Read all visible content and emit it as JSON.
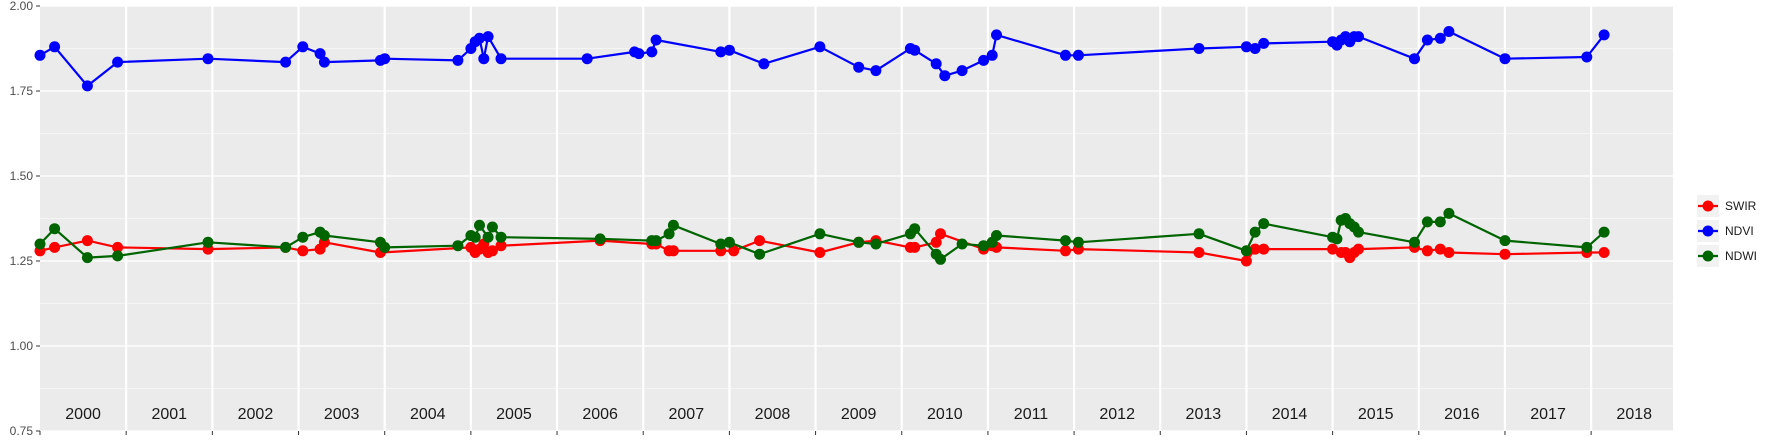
{
  "chart_data": {
    "type": "line",
    "title": "",
    "xlabel": "",
    "ylabel": "",
    "ylim": [
      0.75,
      2.0
    ],
    "xlim": [
      1999.5,
      2018.45
    ],
    "y_ticks": [
      "0.75",
      "1.00",
      "1.25",
      "1.50",
      "1.75",
      "2.00"
    ],
    "years": [
      "2000",
      "2001",
      "2002",
      "2003",
      "2004",
      "2005",
      "2006",
      "2007",
      "2008",
      "2009",
      "2010",
      "2011",
      "2012",
      "2013",
      "2014",
      "2015",
      "2016",
      "2017",
      "2018"
    ],
    "grid": true,
    "legend_position": "right",
    "series": [
      {
        "name": "SWIR",
        "color": "#ff0000",
        "points": [
          [
            1999.5,
            1.28
          ],
          [
            1999.67,
            1.29
          ],
          [
            2000.05,
            1.31
          ],
          [
            2000.4,
            1.29
          ],
          [
            2001.45,
            1.285
          ],
          [
            2002.35,
            1.29
          ],
          [
            2002.55,
            1.28
          ],
          [
            2002.75,
            1.285
          ],
          [
            2002.8,
            1.305
          ],
          [
            2003.45,
            1.275
          ],
          [
            2004.5,
            1.29
          ],
          [
            2004.55,
            1.275
          ],
          [
            2004.6,
            1.285
          ],
          [
            2004.65,
            1.3
          ],
          [
            2004.7,
            1.275
          ],
          [
            2004.75,
            1.28
          ],
          [
            2004.85,
            1.295
          ],
          [
            2006.0,
            1.31
          ],
          [
            2006.6,
            1.3
          ],
          [
            2006.65,
            1.3
          ],
          [
            2006.8,
            1.28
          ],
          [
            2006.85,
            1.28
          ],
          [
            2007.4,
            1.28
          ],
          [
            2007.55,
            1.28
          ],
          [
            2007.85,
            1.31
          ],
          [
            2008.55,
            1.275
          ],
          [
            2009.0,
            1.305
          ],
          [
            2009.2,
            1.31
          ],
          [
            2009.6,
            1.29
          ],
          [
            2009.65,
            1.29
          ],
          [
            2009.9,
            1.305
          ],
          [
            2009.95,
            1.33
          ],
          [
            2010.45,
            1.285
          ],
          [
            2010.55,
            1.295
          ],
          [
            2010.6,
            1.29
          ],
          [
            2011.4,
            1.28
          ],
          [
            2011.55,
            1.285
          ],
          [
            2012.95,
            1.275
          ],
          [
            2013.5,
            1.25
          ],
          [
            2013.6,
            1.285
          ],
          [
            2013.7,
            1.285
          ],
          [
            2014.5,
            1.285
          ],
          [
            2014.6,
            1.275
          ],
          [
            2014.65,
            1.275
          ],
          [
            2014.7,
            1.26
          ],
          [
            2014.75,
            1.275
          ],
          [
            2014.8,
            1.285
          ],
          [
            2015.45,
            1.29
          ],
          [
            2015.6,
            1.28
          ],
          [
            2015.75,
            1.285
          ],
          [
            2015.85,
            1.275
          ],
          [
            2016.5,
            1.27
          ],
          [
            2017.45,
            1.275
          ],
          [
            2017.65,
            1.275
          ]
        ]
      },
      {
        "name": "NDVI",
        "color": "#0000ff",
        "points": [
          [
            1999.5,
            1.855
          ],
          [
            1999.67,
            1.88
          ],
          [
            2000.05,
            1.765
          ],
          [
            2000.4,
            1.835
          ],
          [
            2001.45,
            1.845
          ],
          [
            2002.35,
            1.835
          ],
          [
            2002.55,
            1.88
          ],
          [
            2002.75,
            1.86
          ],
          [
            2002.8,
            1.835
          ],
          [
            2003.45,
            1.84
          ],
          [
            2003.5,
            1.845
          ],
          [
            2004.35,
            1.84
          ],
          [
            2004.5,
            1.875
          ],
          [
            2004.55,
            1.895
          ],
          [
            2004.6,
            1.905
          ],
          [
            2004.65,
            1.845
          ],
          [
            2004.7,
            1.91
          ],
          [
            2004.85,
            1.845
          ],
          [
            2005.85,
            1.845
          ],
          [
            2006.4,
            1.865
          ],
          [
            2006.45,
            1.86
          ],
          [
            2006.6,
            1.865
          ],
          [
            2006.65,
            1.9
          ],
          [
            2007.4,
            1.865
          ],
          [
            2007.5,
            1.87
          ],
          [
            2007.9,
            1.83
          ],
          [
            2008.55,
            1.88
          ],
          [
            2009.0,
            1.82
          ],
          [
            2009.2,
            1.81
          ],
          [
            2009.6,
            1.875
          ],
          [
            2009.65,
            1.87
          ],
          [
            2009.9,
            1.83
          ],
          [
            2010.0,
            1.795
          ],
          [
            2010.2,
            1.81
          ],
          [
            2010.45,
            1.84
          ],
          [
            2010.55,
            1.855
          ],
          [
            2010.6,
            1.915
          ],
          [
            2011.4,
            1.855
          ],
          [
            2011.55,
            1.855
          ],
          [
            2012.95,
            1.875
          ],
          [
            2013.5,
            1.88
          ],
          [
            2013.6,
            1.875
          ],
          [
            2013.7,
            1.89
          ],
          [
            2014.5,
            1.895
          ],
          [
            2014.55,
            1.885
          ],
          [
            2014.6,
            1.9
          ],
          [
            2014.65,
            1.91
          ],
          [
            2014.7,
            1.895
          ],
          [
            2014.75,
            1.91
          ],
          [
            2014.8,
            1.91
          ],
          [
            2015.45,
            1.845
          ],
          [
            2015.6,
            1.9
          ],
          [
            2015.75,
            1.905
          ],
          [
            2015.85,
            1.925
          ],
          [
            2016.5,
            1.845
          ],
          [
            2017.45,
            1.85
          ],
          [
            2017.65,
            1.915
          ]
        ]
      },
      {
        "name": "NDWI",
        "color": "#006400",
        "points": [
          [
            1999.5,
            1.3
          ],
          [
            1999.67,
            1.345
          ],
          [
            2000.05,
            1.26
          ],
          [
            2000.4,
            1.265
          ],
          [
            2001.45,
            1.305
          ],
          [
            2002.35,
            1.29
          ],
          [
            2002.55,
            1.32
          ],
          [
            2002.75,
            1.335
          ],
          [
            2002.8,
            1.325
          ],
          [
            2003.45,
            1.305
          ],
          [
            2003.5,
            1.29
          ],
          [
            2004.35,
            1.295
          ],
          [
            2004.5,
            1.325
          ],
          [
            2004.55,
            1.32
          ],
          [
            2004.6,
            1.355
          ],
          [
            2004.7,
            1.32
          ],
          [
            2004.75,
            1.35
          ],
          [
            2004.85,
            1.32
          ],
          [
            2006.0,
            1.315
          ],
          [
            2006.6,
            1.31
          ],
          [
            2006.65,
            1.31
          ],
          [
            2006.8,
            1.33
          ],
          [
            2006.85,
            1.355
          ],
          [
            2007.4,
            1.3
          ],
          [
            2007.5,
            1.305
          ],
          [
            2007.85,
            1.27
          ],
          [
            2008.55,
            1.33
          ],
          [
            2009.0,
            1.305
          ],
          [
            2009.2,
            1.3
          ],
          [
            2009.6,
            1.33
          ],
          [
            2009.65,
            1.345
          ],
          [
            2009.9,
            1.27
          ],
          [
            2009.95,
            1.255
          ],
          [
            2010.2,
            1.3
          ],
          [
            2010.45,
            1.295
          ],
          [
            2010.55,
            1.305
          ],
          [
            2010.6,
            1.325
          ],
          [
            2011.4,
            1.31
          ],
          [
            2011.55,
            1.305
          ],
          [
            2012.95,
            1.33
          ],
          [
            2013.5,
            1.28
          ],
          [
            2013.6,
            1.335
          ],
          [
            2013.7,
            1.36
          ],
          [
            2014.5,
            1.32
          ],
          [
            2014.55,
            1.315
          ],
          [
            2014.6,
            1.37
          ],
          [
            2014.65,
            1.375
          ],
          [
            2014.7,
            1.36
          ],
          [
            2014.75,
            1.35
          ],
          [
            2014.8,
            1.335
          ],
          [
            2015.45,
            1.305
          ],
          [
            2015.6,
            1.365
          ],
          [
            2015.75,
            1.365
          ],
          [
            2015.85,
            1.39
          ],
          [
            2016.5,
            1.31
          ],
          [
            2017.45,
            1.29
          ],
          [
            2017.65,
            1.335
          ]
        ]
      }
    ]
  }
}
